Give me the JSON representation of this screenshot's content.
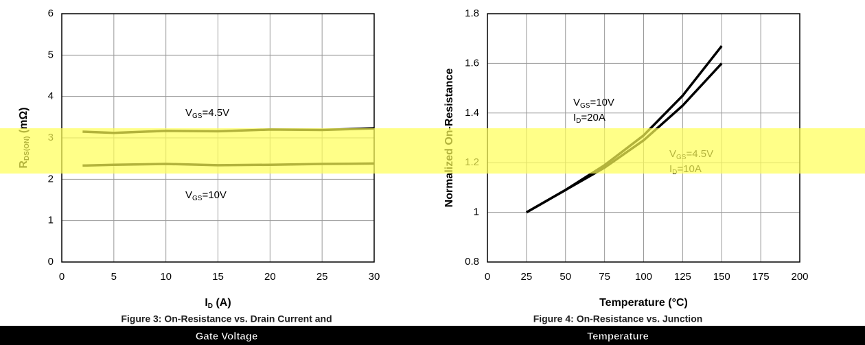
{
  "chart_data": [
    {
      "type": "line",
      "xlabel": [
        "I",
        "D",
        " (A)"
      ],
      "ylabel": [
        "R",
        "DS(ON)",
        " (mΩ)"
      ],
      "x": [
        2,
        5,
        10,
        15,
        20,
        25,
        30
      ],
      "series": [
        {
          "color": "#000000",
          "values": [
            3.15,
            3.12,
            3.17,
            3.16,
            3.2,
            3.19,
            3.23
          ]
        },
        {
          "color": "#000000",
          "values": [
            2.33,
            2.35,
            2.37,
            2.34,
            2.35,
            2.37,
            2.38
          ]
        }
      ],
      "annotations": [
        [
          "V",
          "GS",
          "=4.5V"
        ],
        [
          "V",
          "GS",
          "=10V"
        ]
      ],
      "xlim": [
        0,
        30
      ],
      "xticks": [
        0,
        5,
        10,
        15,
        20,
        25,
        30
      ],
      "ylim": [
        0,
        6
      ],
      "yticks": [
        0,
        1,
        2,
        3,
        4,
        5,
        6
      ],
      "grid": true,
      "caption": [
        "Figure 3: On-Resistance vs. Drain Current and",
        "Gate Voltage"
      ]
    },
    {
      "type": "line",
      "xlabel": [
        "Temperature (°C)"
      ],
      "ylabel": [
        "Normalized On-Resistance"
      ],
      "x": [
        25,
        50,
        75,
        100,
        125,
        150
      ],
      "series": [
        {
          "color": "#000000",
          "values": [
            1.0,
            1.09,
            1.19,
            1.31,
            1.47,
            1.67
          ]
        },
        {
          "color": "#000000",
          "values": [
            1.0,
            1.09,
            1.18,
            1.29,
            1.43,
            1.6
          ]
        }
      ],
      "annotations": [
        [
          "V",
          "GS",
          "=10V"
        ],
        [
          "I",
          "D",
          "=20A"
        ],
        [
          "V",
          "GS",
          "=4.5V"
        ],
        [
          "I",
          "D",
          "=10A"
        ]
      ],
      "xlim": [
        0,
        200
      ],
      "xticks": [
        0,
        25,
        50,
        75,
        100,
        125,
        150,
        175,
        200
      ],
      "ylim": [
        0.8,
        1.8
      ],
      "yticks": [
        0.8,
        1,
        1.2,
        1.4,
        1.6,
        1.8
      ],
      "grid": true,
      "caption": [
        "Figure 4: On-Resistance vs. Junction",
        "Temperature"
      ]
    }
  ]
}
